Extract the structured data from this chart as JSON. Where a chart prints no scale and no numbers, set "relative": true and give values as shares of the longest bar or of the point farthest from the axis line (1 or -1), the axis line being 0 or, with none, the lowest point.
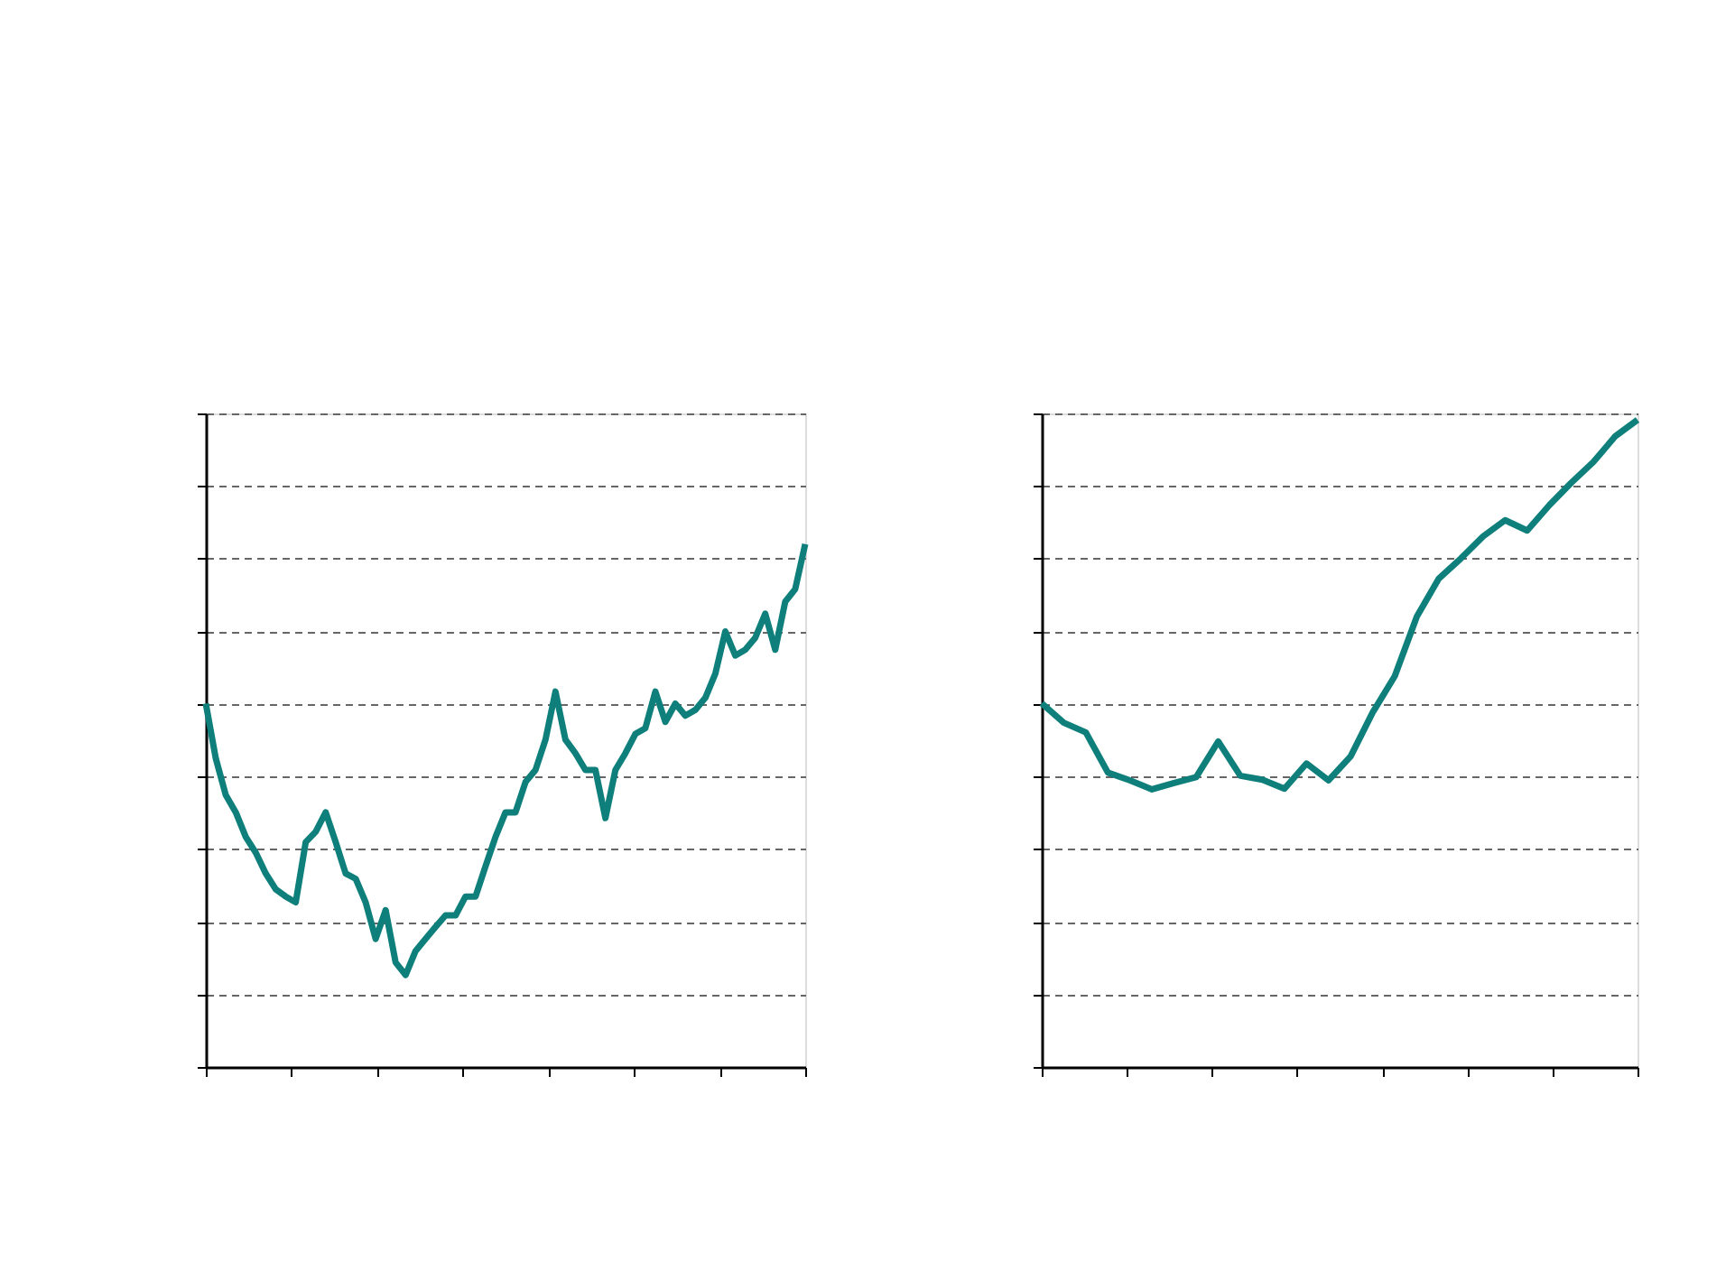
{
  "chart_data": [
    {
      "type": "line",
      "relative": true,
      "grid": "y",
      "tick_labels": false,
      "color": "#0e7f7a",
      "categories": [
        null,
        null,
        null,
        null,
        null,
        null,
        null,
        null,
        null,
        null,
        null,
        null,
        null,
        null,
        null,
        null,
        null,
        null,
        null,
        null,
        null,
        null,
        null,
        null,
        null,
        null,
        null,
        null,
        null,
        null,
        null,
        null,
        null,
        null,
        null,
        null,
        null,
        null,
        null,
        null,
        null,
        null,
        null,
        null,
        null,
        null,
        null,
        null,
        null,
        null,
        null,
        null,
        null,
        null,
        null,
        null,
        null,
        null,
        null,
        null,
        null
      ],
      "values": [
        0.695,
        0.59,
        0.52,
        0.487,
        0.44,
        0.41,
        0.37,
        0.34,
        0.326,
        0.315,
        0.43,
        0.45,
        0.487,
        0.43,
        0.37,
        0.36,
        0.315,
        0.245,
        0.3,
        0.2,
        0.176,
        0.222,
        0.245,
        0.268,
        0.29,
        0.29,
        0.326,
        0.326,
        0.384,
        0.44,
        0.487,
        0.487,
        0.545,
        0.568,
        0.626,
        0.718,
        0.626,
        0.6,
        0.568,
        0.568,
        0.476,
        0.568,
        0.6,
        0.637,
        0.648,
        0.718,
        0.66,
        0.695,
        0.672,
        0.683,
        0.706,
        0.752,
        0.833,
        0.787,
        0.798,
        0.821,
        0.867,
        0.798,
        0.89,
        0.914,
        1.0
      ]
    },
    {
      "type": "line",
      "relative": true,
      "grid": "y",
      "tick_labels": false,
      "color": "#0e7f7a",
      "categories": [
        null,
        null,
        null,
        null,
        null,
        null,
        null,
        null,
        null,
        null,
        null,
        null,
        null,
        null,
        null,
        null,
        null,
        null,
        null,
        null,
        null,
        null,
        null,
        null,
        null,
        null,
        null,
        null
      ],
      "values": [
        0.562,
        0.532,
        0.517,
        0.455,
        0.443,
        0.429,
        0.439,
        0.448,
        0.503,
        0.45,
        0.444,
        0.43,
        0.469,
        0.443,
        0.48,
        0.548,
        0.604,
        0.696,
        0.755,
        0.786,
        0.82,
        0.845,
        0.829,
        0.868,
        0.903,
        0.935,
        0.975,
        1.0
      ]
    }
  ]
}
